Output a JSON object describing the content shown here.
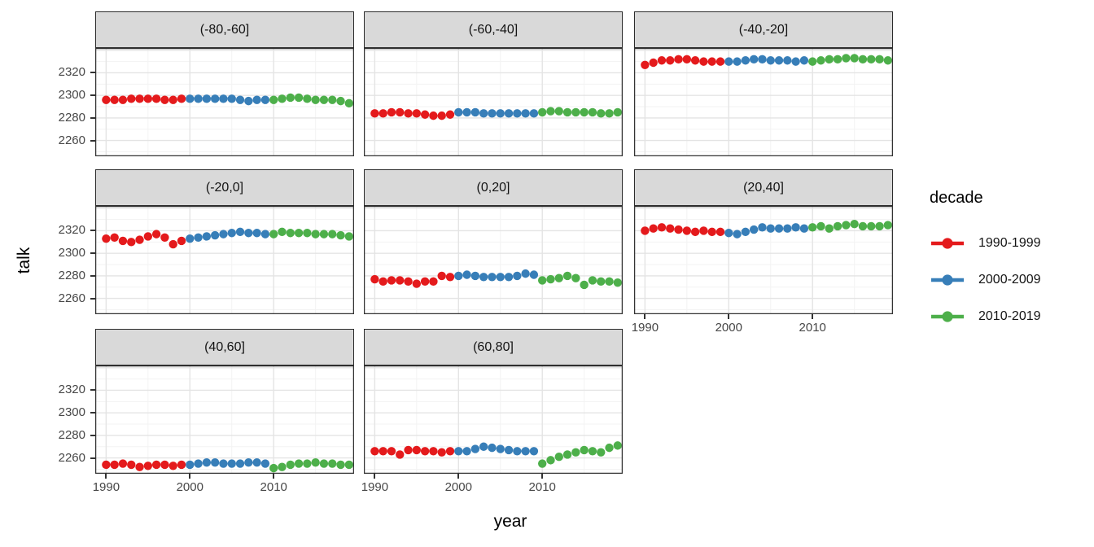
{
  "figure": {
    "ylabel": "talk",
    "xlabel": "year",
    "legend_title": "decade"
  },
  "colors": {
    "series_red": "#e41a1c",
    "series_blue": "#377eb8",
    "series_green": "#4daf4a",
    "strip_background": "#d9d9d9",
    "panel_border": "#333333",
    "grid_major": "#e4e4e4",
    "grid_minor": "#f3f3f3",
    "axis_text": "#474747"
  },
  "chart_data": {
    "type": "scatter",
    "title": "",
    "xlabel": "year",
    "ylabel": "talk",
    "legend": {
      "title": "decade",
      "position": "right",
      "entries": [
        {
          "label": "1990-1999",
          "color": "#e41a1c"
        },
        {
          "label": "2000-2009",
          "color": "#377eb8"
        },
        {
          "label": "2010-2019",
          "color": "#4daf4a"
        }
      ]
    },
    "x_tick_labels": [
      1990,
      2000,
      2010
    ],
    "y_tick_labels": [
      2320,
      2300,
      2280,
      2260
    ],
    "x_major_gridlines": [
      1990,
      2000,
      2010
    ],
    "x_minor_gridlines": [
      1995,
      2005,
      2015
    ],
    "y_major_gridlines": [
      2260,
      2280,
      2300,
      2320,
      2340
    ],
    "y_minor_gridlines": [
      2250,
      2270,
      2290,
      2310,
      2330
    ],
    "xlim": [
      1988.7,
      2019.6
    ],
    "ylim": [
      2246,
      2342
    ],
    "x_step": 1,
    "facets": [
      {
        "label": "(-80,-60]",
        "series": [
          {
            "name": "1990-1999",
            "x_start": 1990,
            "values": [
              2296,
              2296,
              2296,
              2297,
              2297,
              2297,
              2297,
              2296,
              2296,
              2297
            ]
          },
          {
            "name": "2000-2009",
            "x_start": 2000,
            "values": [
              2297,
              2297,
              2297,
              2297,
              2297,
              2297,
              2296,
              2295,
              2296,
              2296
            ]
          },
          {
            "name": "2010-2019",
            "x_start": 2010,
            "values": [
              2296,
              2297,
              2298,
              2298,
              2297,
              2296,
              2296,
              2296,
              2295,
              2293
            ]
          }
        ]
      },
      {
        "label": "(-60,-40]",
        "series": [
          {
            "name": "1990-1999",
            "x_start": 1990,
            "values": [
              2284,
              2284,
              2285,
              2285,
              2284,
              2284,
              2283,
              2282,
              2282,
              2283
            ]
          },
          {
            "name": "2000-2009",
            "x_start": 2000,
            "values": [
              2285,
              2285,
              2285,
              2284,
              2284,
              2284,
              2284,
              2284,
              2284,
              2284
            ]
          },
          {
            "name": "2010-2019",
            "x_start": 2010,
            "values": [
              2285,
              2286,
              2286,
              2285,
              2285,
              2285,
              2285,
              2284,
              2284,
              2285
            ]
          }
        ]
      },
      {
        "label": "(-40,-20]",
        "series": [
          {
            "name": "1990-1999",
            "x_start": 1990,
            "values": [
              2327,
              2329,
              2331,
              2331,
              2332,
              2332,
              2331,
              2330,
              2330,
              2330
            ]
          },
          {
            "name": "2000-2009",
            "x_start": 2000,
            "values": [
              2330,
              2330,
              2331,
              2332,
              2332,
              2331,
              2331,
              2331,
              2330,
              2331
            ]
          },
          {
            "name": "2010-2019",
            "x_start": 2010,
            "values": [
              2330,
              2331,
              2332,
              2332,
              2333,
              2333,
              2332,
              2332,
              2332,
              2331
            ]
          }
        ]
      },
      {
        "label": "(-20,0]",
        "series": [
          {
            "name": "1990-1999",
            "x_start": 1990,
            "values": [
              2313,
              2314,
              2311,
              2310,
              2312,
              2315,
              2317,
              2314,
              2308,
              2311
            ]
          },
          {
            "name": "2000-2009",
            "x_start": 2000,
            "values": [
              2313,
              2314,
              2315,
              2316,
              2317,
              2318,
              2319,
              2318,
              2318,
              2317
            ]
          },
          {
            "name": "2010-2019",
            "x_start": 2010,
            "values": [
              2317,
              2319,
              2318,
              2318,
              2318,
              2317,
              2317,
              2317,
              2316,
              2315
            ]
          }
        ]
      },
      {
        "label": "(0,20]",
        "series": [
          {
            "name": "1990-1999",
            "x_start": 1990,
            "values": [
              2277,
              2275,
              2276,
              2276,
              2275,
              2273,
              2275,
              2275,
              2280,
              2279
            ]
          },
          {
            "name": "2000-2009",
            "x_start": 2000,
            "values": [
              2280,
              2281,
              2280,
              2279,
              2279,
              2279,
              2279,
              2280,
              2282,
              2281
            ]
          },
          {
            "name": "2010-2019",
            "x_start": 2010,
            "values": [
              2276,
              2277,
              2278,
              2280,
              2278,
              2272,
              2276,
              2275,
              2275,
              2274
            ]
          }
        ]
      },
      {
        "label": "(20,40]",
        "series": [
          {
            "name": "1990-1999",
            "x_start": 1990,
            "values": [
              2320,
              2322,
              2323,
              2322,
              2321,
              2320,
              2319,
              2320,
              2319,
              2319
            ]
          },
          {
            "name": "2000-2009",
            "x_start": 2000,
            "values": [
              2318,
              2317,
              2319,
              2321,
              2323,
              2322,
              2322,
              2322,
              2323,
              2322
            ]
          },
          {
            "name": "2010-2019",
            "x_start": 2010,
            "values": [
              2323,
              2324,
              2322,
              2324,
              2325,
              2326,
              2324,
              2324,
              2324,
              2325
            ]
          }
        ]
      },
      {
        "label": "(40,60]",
        "series": [
          {
            "name": "1990-1999",
            "x_start": 1990,
            "values": [
              2254,
              2254,
              2255,
              2254,
              2252,
              2253,
              2254,
              2254,
              2253,
              2254
            ]
          },
          {
            "name": "2000-2009",
            "x_start": 2000,
            "values": [
              2254,
              2255,
              2256,
              2256,
              2255,
              2255,
              2255,
              2256,
              2256,
              2255
            ]
          },
          {
            "name": "2010-2019",
            "x_start": 2010,
            "values": [
              2251,
              2252,
              2254,
              2255,
              2255,
              2256,
              2255,
              2255,
              2254,
              2254
            ]
          }
        ]
      },
      {
        "label": "(60,80]",
        "series": [
          {
            "name": "1990-1999",
            "x_start": 1990,
            "values": [
              2266,
              2266,
              2266,
              2263,
              2267,
              2267,
              2266,
              2266,
              2265,
              2266
            ]
          },
          {
            "name": "2000-2009",
            "x_start": 2000,
            "values": [
              2266,
              2266,
              2268,
              2270,
              2269,
              2268,
              2267,
              2266,
              2266,
              2266
            ]
          },
          {
            "name": "2010-2019",
            "x_start": 2010,
            "values": [
              2255,
              2258,
              2261,
              2263,
              2265,
              2267,
              2266,
              2265,
              2269,
              2271
            ]
          }
        ]
      }
    ]
  }
}
